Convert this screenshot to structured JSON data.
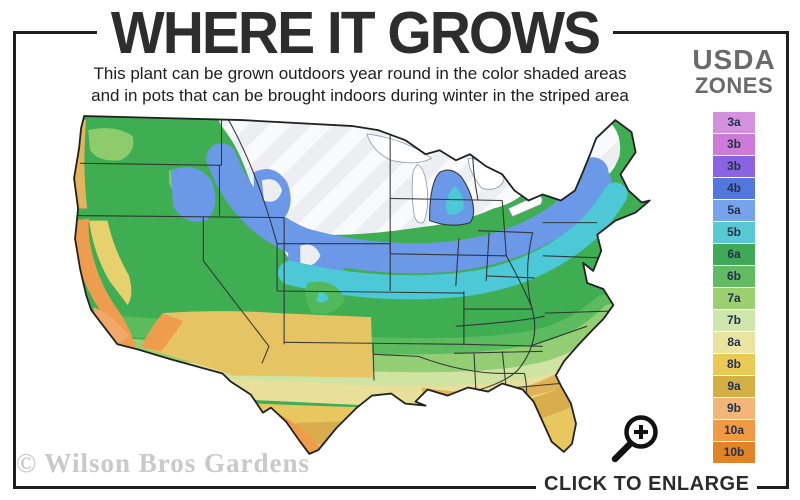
{
  "title": "WHERE IT GROWS",
  "subtitle": {
    "line1": "This plant can be grown outdoors year round in the color shaded areas",
    "line2": "and in pots that can be brought indoors during winter in the striped area"
  },
  "legend": {
    "heading_line1": "USDA",
    "heading_line2": "ZONES",
    "heading_color": "#6a6a6a",
    "zones": [
      {
        "label": "3a",
        "color": "#d491dd"
      },
      {
        "label": "3b",
        "color": "#cd7ad8"
      },
      {
        "label": "3b",
        "color": "#8a63e0"
      },
      {
        "label": "4b",
        "color": "#5377dd"
      },
      {
        "label": "5a",
        "color": "#76a3ea"
      },
      {
        "label": "5b",
        "color": "#59c8d5"
      },
      {
        "label": "6a",
        "color": "#3fa957"
      },
      {
        "label": "6b",
        "color": "#62bb63"
      },
      {
        "label": "7a",
        "color": "#9ccf70"
      },
      {
        "label": "7b",
        "color": "#cfe6ad"
      },
      {
        "label": "8a",
        "color": "#e9e4a0"
      },
      {
        "label": "8b",
        "color": "#eac955"
      },
      {
        "label": "9a",
        "color": "#d4af45"
      },
      {
        "label": "9b",
        "color": "#f2b679"
      },
      {
        "label": "10a",
        "color": "#f09b43"
      },
      {
        "label": "10b",
        "color": "#e08427"
      }
    ]
  },
  "map": {
    "kind": "usda-hardiness-zones-map-continental-us",
    "striped_region_meaning": "striped area",
    "shaded_region_meaning": "color shaded areas"
  },
  "watermark": "© Wilson Bros Gardens",
  "enlarge": {
    "label": "CLICK TO ENLARGE",
    "icon": "magnifier-plus-icon"
  },
  "frame_color": "#1f1f1f"
}
